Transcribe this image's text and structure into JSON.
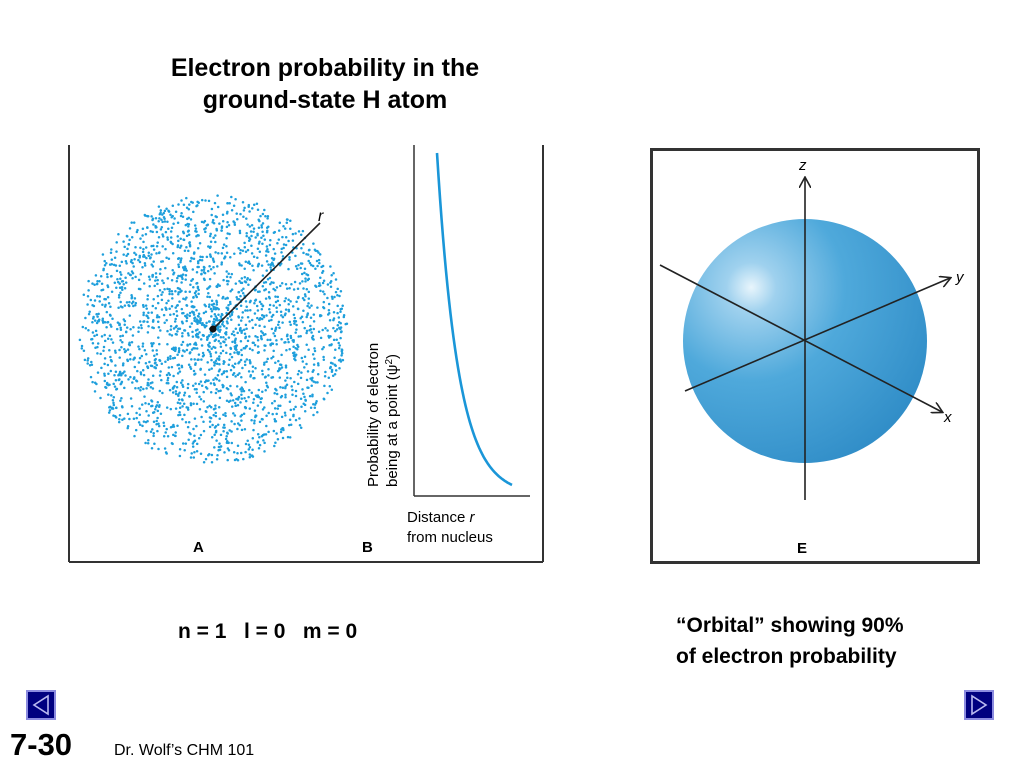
{
  "title": {
    "line1": "Electron probability in the",
    "line2": "ground-state H atom"
  },
  "figure_left": {
    "panel_a": {
      "label": "A",
      "radius_label": "r"
    },
    "panel_b": {
      "label": "B",
      "y_axis_line1": "Probability of electron",
      "y_axis_line2": "being at a point (ψ",
      "y_axis_sup": "2",
      "y_axis_close": ")",
      "x_axis_line1": "Distance ",
      "x_axis_r": "r",
      "x_axis_line2": "from nucleus"
    }
  },
  "figure_right": {
    "label": "E",
    "axis_z": "z",
    "axis_y": "y",
    "axis_x": "x"
  },
  "quantum_numbers": "n = 1   l = 0   m = 0",
  "orbital_caption": {
    "line1": "“Orbital” showing 90%",
    "line2": "of electron probability"
  },
  "footer": {
    "slide_number": "7-30",
    "course": "Dr. Wolf’s CHM 101"
  },
  "colors": {
    "dot_blue": "#1e9fdc",
    "curve_blue": "#1a96d8",
    "sphere_blue": "#3d9fd4",
    "nav_blue": "#000080"
  },
  "icons": {
    "prev": "previous-arrow-icon",
    "next": "next-arrow-icon"
  }
}
